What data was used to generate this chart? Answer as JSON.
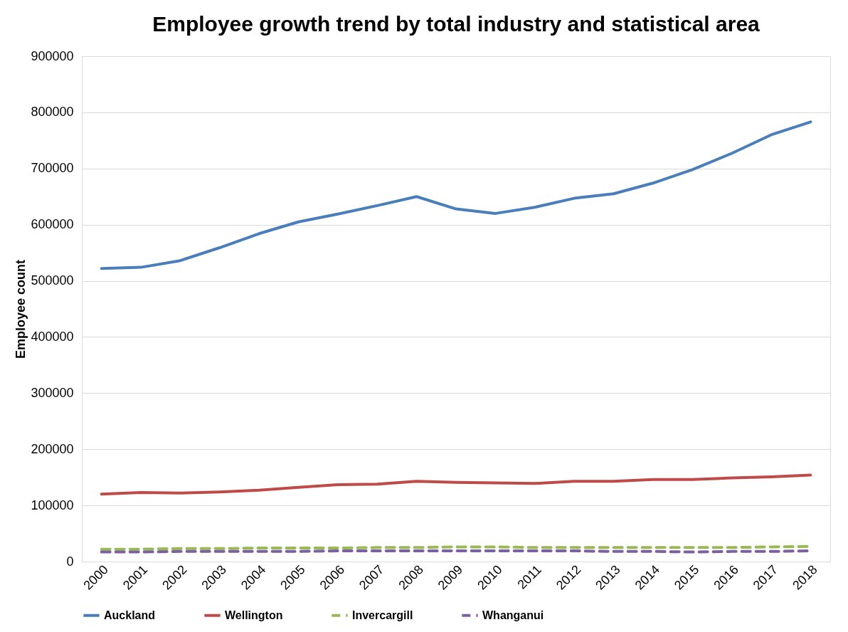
{
  "chart_data": {
    "type": "line",
    "title": "Employee growth trend by total industry and statistical area",
    "ylabel": "Employee count",
    "categories": [
      "2000",
      "2001",
      "2002",
      "2003",
      "2004",
      "2005",
      "2006",
      "2007",
      "2008",
      "2009",
      "2010",
      "2011",
      "2012",
      "2013",
      "2014",
      "2015",
      "2016",
      "2017",
      "2018"
    ],
    "series": [
      {
        "name": "Auckland",
        "color": "#4a7ebb",
        "line_style": "solid",
        "values": [
          522000,
          524000,
          536000,
          559000,
          584000,
          605000,
          619000,
          634000,
          650000,
          628000,
          620000,
          631000,
          647000,
          655000,
          674000,
          698000,
          727000,
          760000,
          783000
        ]
      },
      {
        "name": "Wellington",
        "color": "#be4b48",
        "line_style": "solid",
        "values": [
          120000,
          123000,
          122000,
          124000,
          127000,
          132000,
          137000,
          138000,
          143000,
          141000,
          140000,
          139000,
          143000,
          143000,
          146000,
          146000,
          149000,
          151000,
          154000
        ]
      },
      {
        "name": "Invercargill",
        "color": "#98b954",
        "line_style": "dashed",
        "values": [
          22000,
          22000,
          23000,
          23000,
          24000,
          24000,
          24000,
          25000,
          25000,
          26000,
          26000,
          25000,
          25000,
          25000,
          25000,
          25000,
          25000,
          26000,
          27000
        ]
      },
      {
        "name": "Whanganui",
        "color": "#7d60a0",
        "line_style": "dashed",
        "values": [
          17000,
          17000,
          18000,
          18000,
          18000,
          18000,
          19000,
          19000,
          19000,
          19000,
          19000,
          19000,
          19000,
          18000,
          18000,
          17000,
          18000,
          18000,
          19000
        ]
      }
    ],
    "ylim": [
      0,
      900000
    ],
    "yticks": [
      0,
      100000,
      200000,
      300000,
      400000,
      500000,
      600000,
      700000,
      800000,
      900000
    ],
    "grid": "y",
    "legend": "bottom",
    "marker": "none"
  }
}
